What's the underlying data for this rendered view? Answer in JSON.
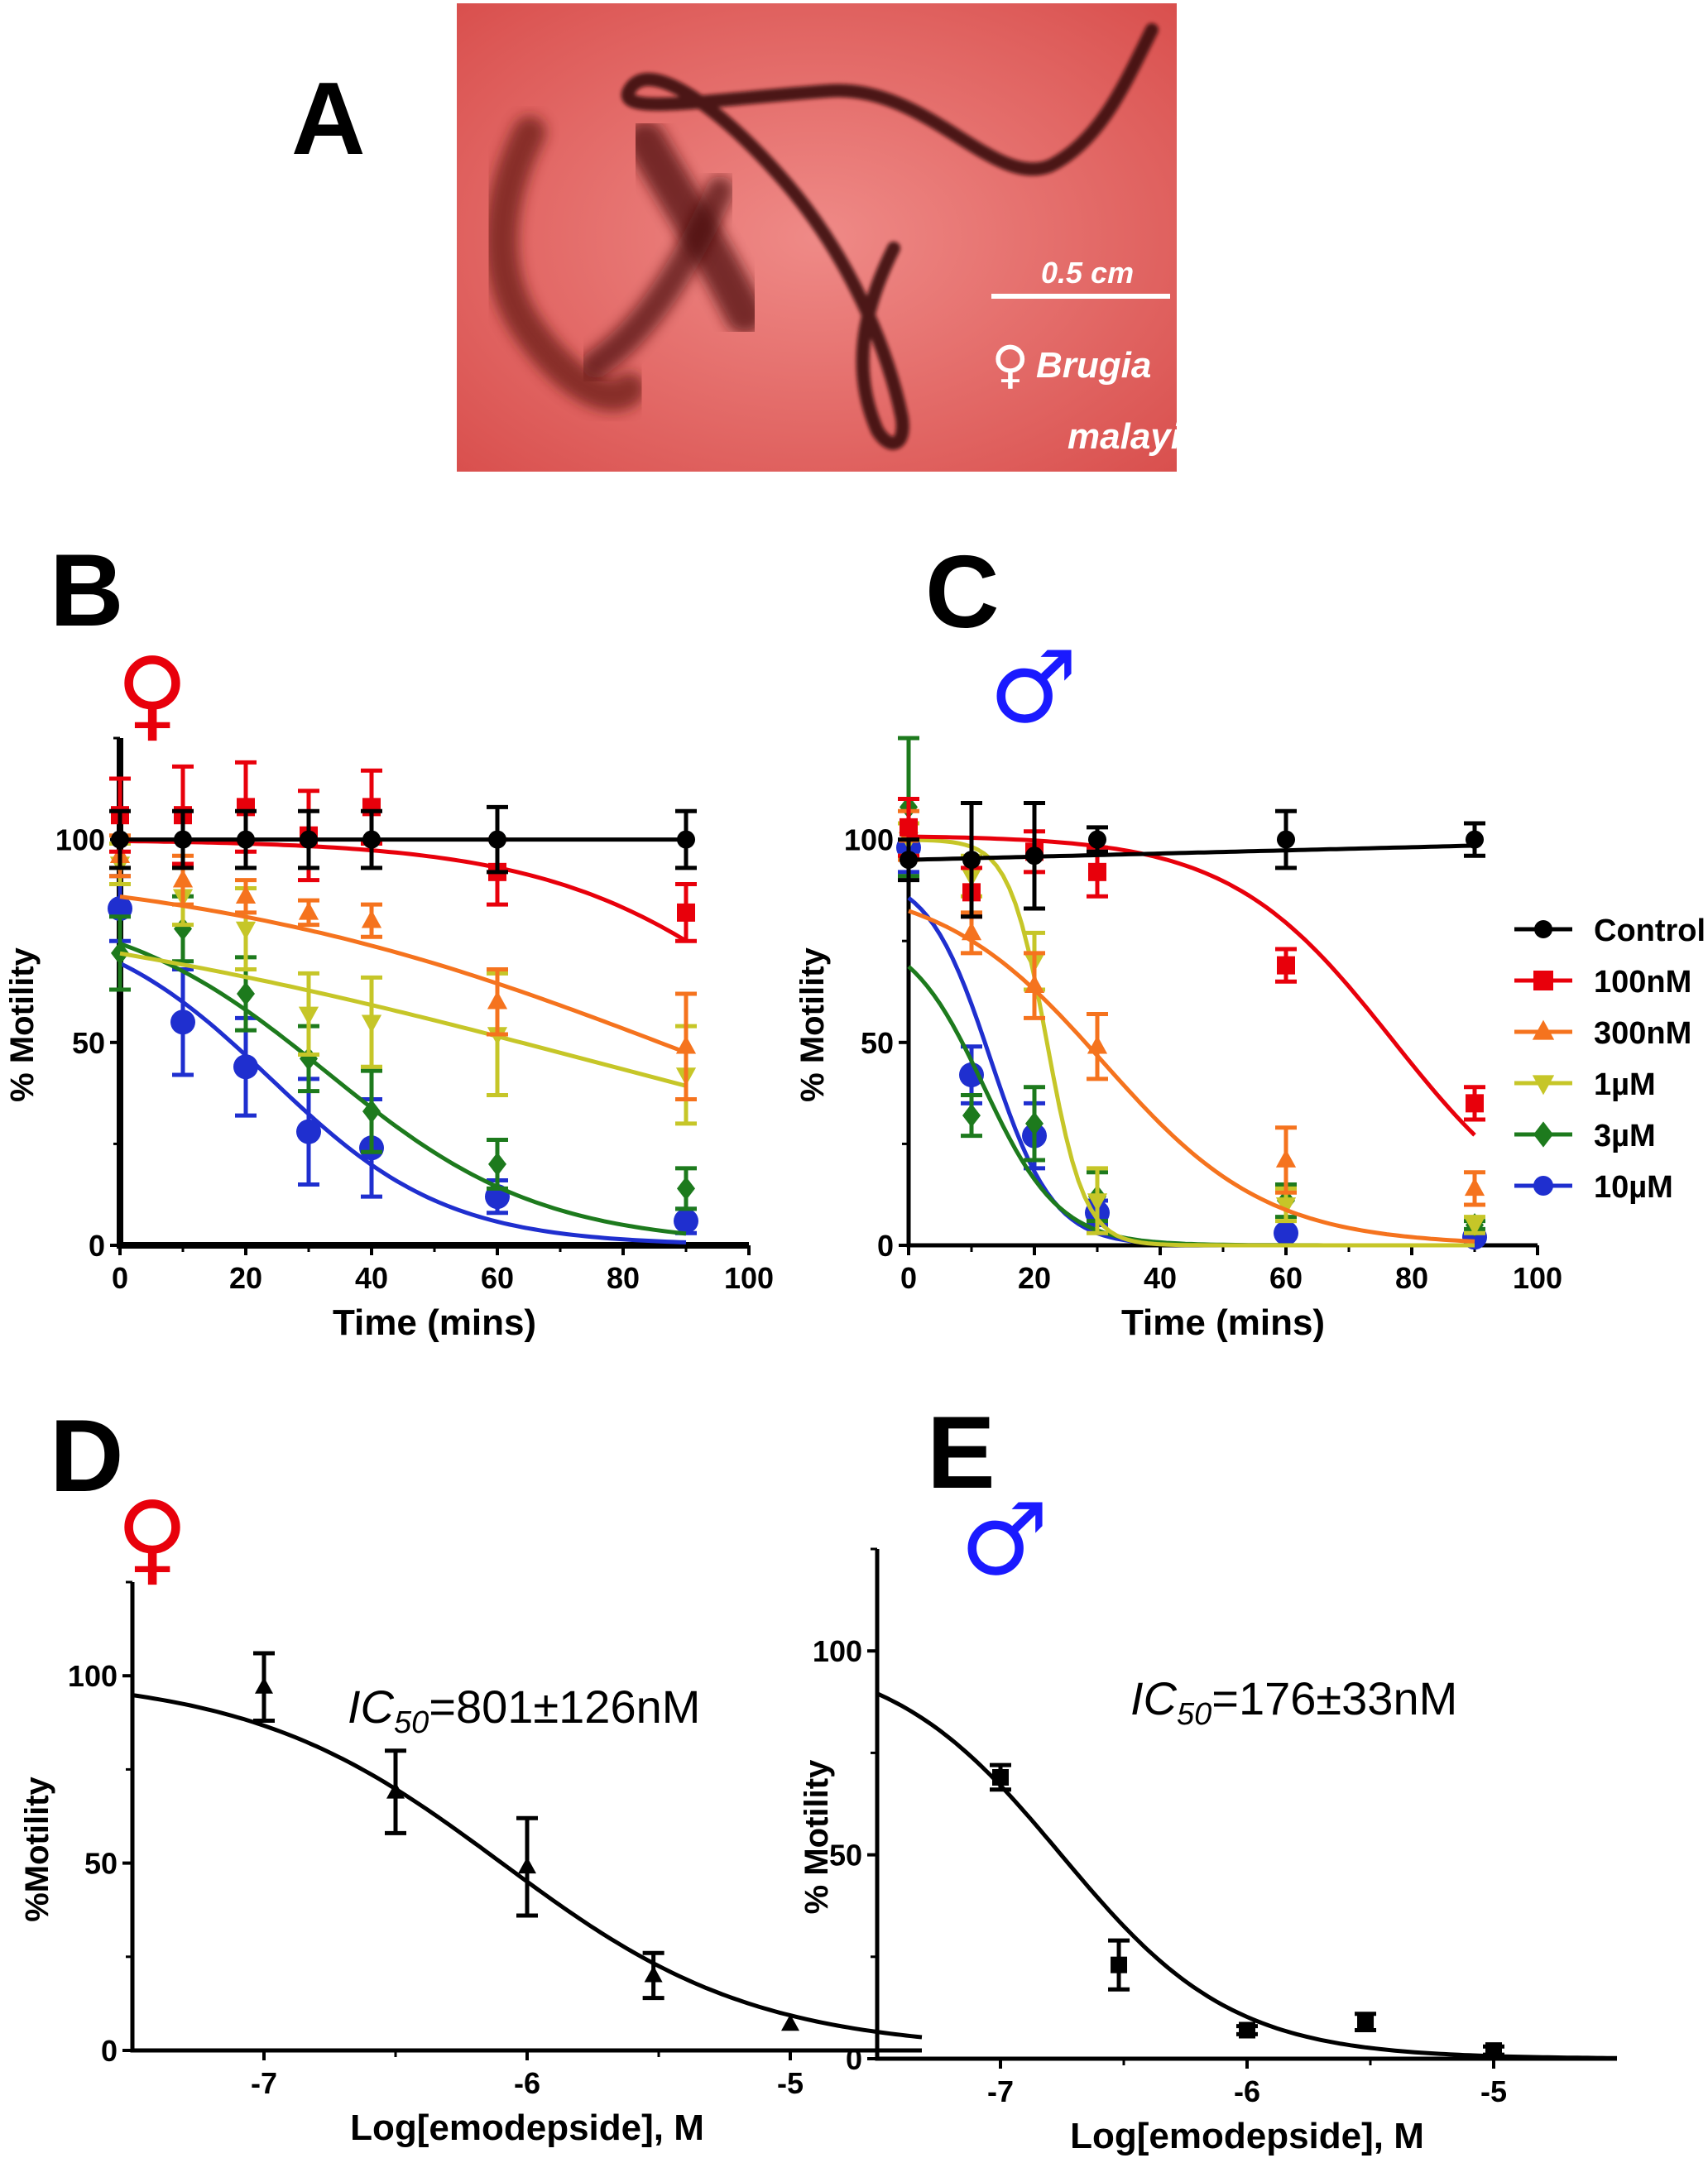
{
  "panel_letters": {
    "a": "A",
    "b": "B",
    "c": "C",
    "d": "D",
    "e": "E"
  },
  "symbols": {
    "female": "♀",
    "male": "♂",
    "female_color": "#e8000b",
    "male_color": "#1a1aff"
  },
  "photo": {
    "scale_label": "0.5 cm",
    "species_line1": "Brugia",
    "species_line2": "malayi",
    "background_color": "#e9706f"
  },
  "legend": {
    "items": [
      {
        "label": "Control",
        "color": "#000000",
        "marker": "circle"
      },
      {
        "label": "100nM",
        "color": "#e8000b",
        "marker": "square"
      },
      {
        "label": "300nM",
        "color": "#f5731e",
        "marker": "triangle-up"
      },
      {
        "label": "1µM",
        "color": "#c6c628",
        "marker": "triangle-down"
      },
      {
        "label": "3µM",
        "color": "#1d7a1d",
        "marker": "diamond"
      },
      {
        "label": "10µM",
        "color": "#1f2fcf",
        "marker": "circle"
      }
    ]
  },
  "chart_data": [
    {
      "id": "B",
      "type": "line",
      "xlabel": "Time (mins)",
      "ylabel": "% Motility",
      "xlim": [
        0,
        100
      ],
      "ylim": [
        0,
        125
      ],
      "xticks": [
        0,
        20,
        40,
        60,
        80,
        100
      ],
      "yticks": [
        0,
        50,
        100
      ],
      "series": [
        {
          "name": "Control",
          "x": [
            0,
            10,
            20,
            30,
            40,
            60,
            90
          ],
          "y": [
            100,
            100,
            100,
            100,
            100,
            100,
            100
          ],
          "err": [
            7,
            7,
            7,
            7,
            7,
            8,
            7
          ],
          "fit": {
            "kind": "flat",
            "value": 100
          }
        },
        {
          "name": "100nM",
          "x": [
            0,
            10,
            20,
            30,
            40,
            60,
            90
          ],
          "y": [
            106,
            106,
            108,
            101,
            108,
            92,
            82
          ],
          "err": [
            9,
            12,
            11,
            11,
            9,
            8,
            7
          ],
          "fit": {
            "kind": "sigmoid",
            "top": 100,
            "t50": 112,
            "slope": 20
          }
        },
        {
          "name": "300nM",
          "x": [
            0,
            10,
            20,
            30,
            40,
            60,
            90
          ],
          "y": [
            96,
            90,
            86,
            82,
            80,
            60,
            49
          ],
          "err": [
            5,
            6,
            4,
            3,
            4,
            8,
            13
          ],
          "fit": {
            "kind": "sigmoid",
            "top": 95,
            "t50": 90,
            "slope": 40
          }
        },
        {
          "name": "1µM",
          "x": [
            0,
            10,
            20,
            30,
            40,
            60,
            90
          ],
          "y": [
            94,
            86,
            78,
            57,
            55,
            52,
            42
          ],
          "err": [
            5,
            7,
            10,
            10,
            11,
            15,
            12
          ],
          "fit": {
            "kind": "sigmoid",
            "top": 90,
            "t50": 76,
            "slope": 55
          }
        },
        {
          "name": "3µM",
          "x": [
            0,
            10,
            20,
            30,
            40,
            60,
            90
          ],
          "y": [
            72,
            78,
            62,
            46,
            33,
            20,
            14
          ],
          "err": [
            9,
            8,
            9,
            8,
            10,
            6,
            5
          ],
          "fit": {
            "kind": "sigmoid",
            "top": 85,
            "t50": 33,
            "slope": 17
          }
        },
        {
          "name": "10µM",
          "x": [
            0,
            10,
            20,
            30,
            40,
            60,
            90
          ],
          "y": [
            83,
            55,
            44,
            28,
            24,
            12,
            6
          ],
          "err": [
            8,
            13,
            12,
            13,
            12,
            4,
            3
          ],
          "fit": {
            "kind": "sigmoid",
            "top": 82,
            "t50": 24,
            "slope": 14
          }
        }
      ]
    },
    {
      "id": "C",
      "type": "line",
      "xlabel": "Time (mins)",
      "ylabel": "% Motility",
      "xlim": [
        0,
        100
      ],
      "ylim": [
        0,
        125
      ],
      "xticks": [
        0,
        20,
        40,
        60,
        80,
        100
      ],
      "yticks": [
        0,
        50,
        100
      ],
      "series": [
        {
          "name": "Control",
          "x": [
            0,
            10,
            20,
            30,
            60,
            90
          ],
          "y": [
            95,
            95,
            96,
            100,
            100,
            100
          ],
          "err": [
            5,
            14,
            13,
            3,
            7,
            4
          ],
          "fit": {
            "kind": "linear",
            "y0": 95,
            "y1": 98.5,
            "x1": 90
          }
        },
        {
          "name": "100nM",
          "x": [
            0,
            10,
            20,
            30,
            60,
            90
          ],
          "y": [
            103,
            87,
            97,
            92,
            69,
            35
          ],
          "err": [
            7,
            6,
            5,
            6,
            4,
            4
          ],
          "fit": {
            "kind": "sigmoid",
            "top": 101,
            "t50": 77,
            "slope": 13
          }
        },
        {
          "name": "300nM",
          "x": [
            0,
            10,
            20,
            30,
            60,
            90
          ],
          "y": [
            101,
            77,
            64,
            49,
            21,
            14
          ],
          "err": [
            6,
            5,
            8,
            8,
            8,
            4
          ],
          "fit": {
            "kind": "sigmoid",
            "top": 90,
            "t50": 31,
            "slope": 13
          }
        },
        {
          "name": "1µM",
          "x": [
            0,
            10,
            20,
            30,
            60,
            90
          ],
          "y": [
            100,
            91,
            70,
            11,
            10,
            5
          ],
          "err": [
            4,
            5,
            7,
            8,
            4,
            2
          ],
          "fit": {
            "kind": "sigmoid",
            "top": 100,
            "t50": 22,
            "slope": 3
          }
        },
        {
          "name": "3µM",
          "x": [
            0,
            10,
            20,
            30,
            60,
            90
          ],
          "y": [
            108,
            32,
            30,
            12,
            11,
            5
          ],
          "err": [
            17,
            5,
            9,
            6,
            4,
            1
          ],
          "fit": {
            "kind": "sigmoid",
            "top": 78,
            "t50": 12,
            "slope": 6
          }
        },
        {
          "name": "10µM",
          "x": [
            0,
            10,
            20,
            30,
            60,
            90
          ],
          "y": [
            98,
            42,
            27,
            8,
            3,
            2
          ],
          "err": [
            6,
            7,
            8,
            3,
            1,
            1
          ],
          "fit": {
            "kind": "sigmoid",
            "top": 92,
            "t50": 13,
            "slope": 5
          }
        }
      ]
    },
    {
      "id": "D",
      "type": "scatter",
      "xlabel": "Log[emodepside], M",
      "ylabel": "%Motility",
      "xlim": [
        -7.5,
        -4.5
      ],
      "ylim": [
        0,
        125
      ],
      "xticks": [
        -7,
        -6,
        -5
      ],
      "yticks": [
        0,
        50,
        100
      ],
      "annotation": {
        "text_italic": "IC",
        "sub": "50",
        "rest": "=801±126nM"
      },
      "points": {
        "x": [
          -7,
          -6.5,
          -6,
          -5.52,
          -5
        ],
        "y": [
          97,
          69,
          49,
          20,
          7
        ],
        "err": [
          9,
          11,
          13,
          6,
          0
        ]
      },
      "fit": {
        "top": 100,
        "bottom": 0,
        "logIC50": -6.096,
        "hill": 0.9
      },
      "marker": "triangle-up"
    },
    {
      "id": "E",
      "type": "scatter",
      "xlabel": "Log[emodepside], M",
      "ylabel": "% Motility",
      "xlim": [
        -7.5,
        -4.5
      ],
      "ylim": [
        0,
        125
      ],
      "xticks": [
        -7,
        -6,
        -5
      ],
      "yticks": [
        0,
        50,
        100
      ],
      "annotation": {
        "text_italic": "IC",
        "sub": "50",
        "rest": "=176±33nM"
      },
      "points": {
        "x": [
          -7,
          -6.52,
          -6,
          -5.52,
          -5
        ],
        "y": [
          69,
          23,
          7,
          9,
          2
        ],
        "err": [
          3,
          6,
          1,
          2,
          1
        ]
      },
      "fit": {
        "top": 100,
        "bottom": 0,
        "logIC50": -6.754,
        "hill": 1.25
      },
      "marker": "square"
    }
  ]
}
